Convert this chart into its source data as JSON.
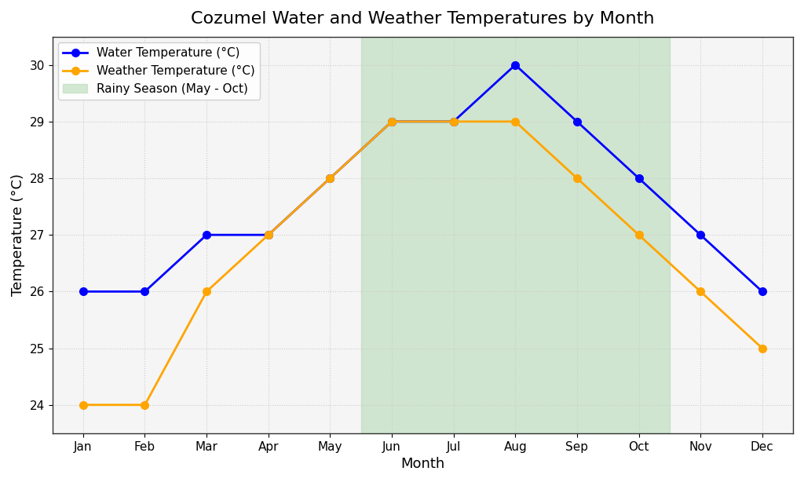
{
  "title": "Cozumel Water and Weather Temperatures by Month",
  "xlabel": "Month",
  "ylabel": "Temperature (°C)",
  "months": [
    "Jan",
    "Feb",
    "Mar",
    "Apr",
    "May",
    "Jun",
    "Jul",
    "Aug",
    "Sep",
    "Oct",
    "Nov",
    "Dec"
  ],
  "water_temp": [
    26,
    26,
    27,
    27,
    28,
    29,
    29,
    30,
    29,
    28,
    27,
    26
  ],
  "weather_temp": [
    24,
    24,
    26,
    27,
    28,
    29,
    29,
    29,
    28,
    27,
    26,
    25
  ],
  "water_color": "#0000ff",
  "weather_color": "#ffa500",
  "rainy_color": "#b2d8b2",
  "rainy_alpha": 0.55,
  "axes_facecolor": "#f5f5f5",
  "figure_facecolor": "#ffffff",
  "ylim": [
    23.5,
    30.5
  ],
  "yticks": [
    24,
    25,
    26,
    27,
    28,
    29,
    30
  ],
  "grid_color": "#cccccc",
  "grid_linestyle": "dotted",
  "legend_labels": [
    "Water Temperature (°C)",
    "Weather Temperature (°C)",
    "Rainy Season (May - Oct)"
  ],
  "title_fontsize": 16,
  "label_fontsize": 13,
  "tick_fontsize": 11,
  "legend_fontsize": 11,
  "marker": "o",
  "marker_size": 7,
  "line_width": 2.0
}
